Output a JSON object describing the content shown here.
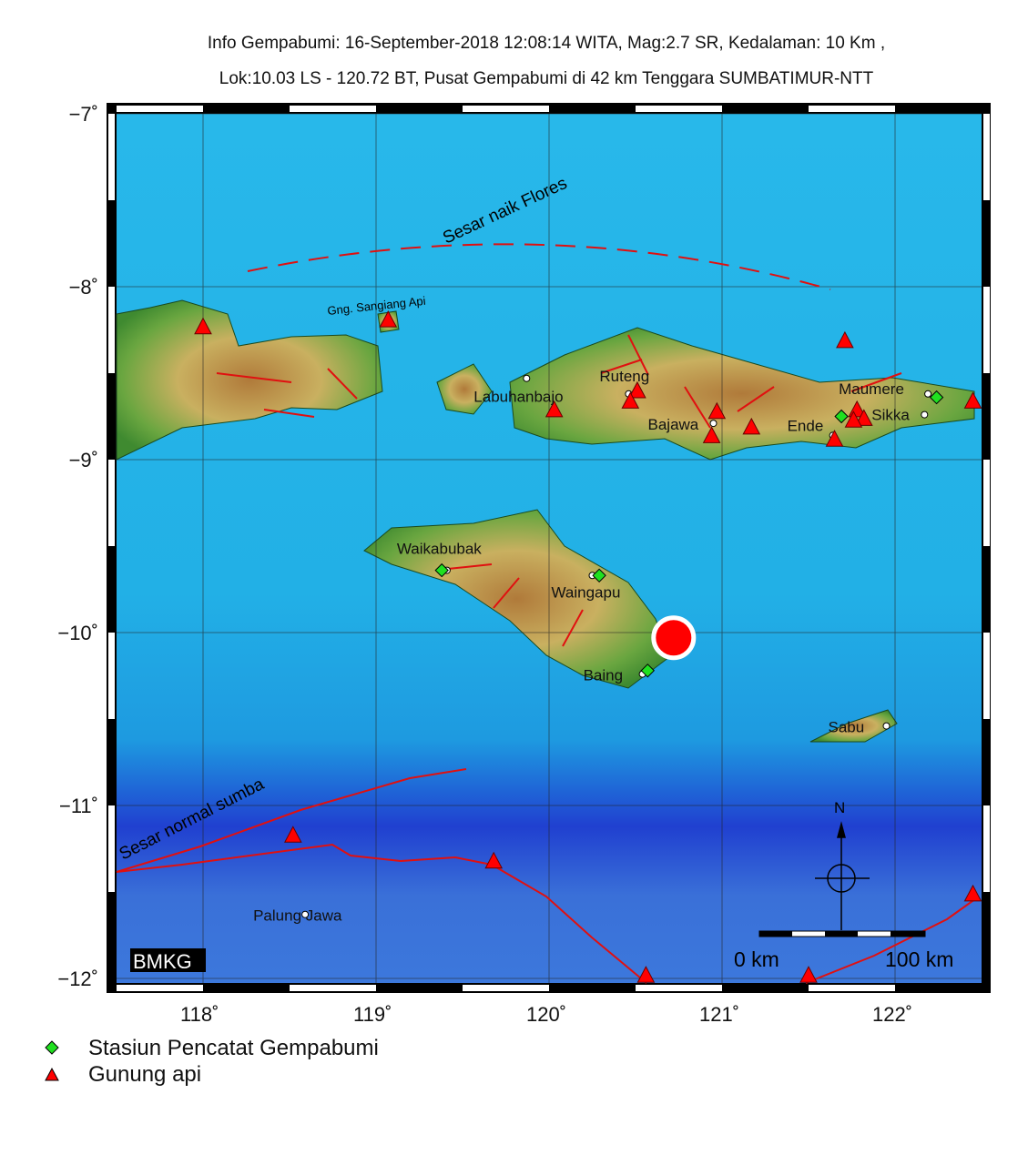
{
  "header": {
    "line1": "Info Gempabumi: 16-September-2018 12:08:14 WITA, Mag:2.7 SR, Kedalaman: 10 Km ,",
    "line2": "Lok:10.03 LS - 120.72 BT, Pusat Gempabumi di 42 km Tenggara SUMBATIMUR-NTT"
  },
  "map": {
    "lon_range": [
      117.5,
      122.5
    ],
    "lat_range": [
      -12,
      -7
    ],
    "lon_ticks": [
      "118˚",
      "119˚",
      "120˚",
      "121˚",
      "122˚"
    ],
    "lat_ticks": [
      "−7˚",
      "−8˚",
      "−9˚",
      "−10˚",
      "−11˚",
      "−12˚"
    ],
    "grid": true,
    "colors": {
      "ocean": "#22b4e8",
      "deep_ocean": "#2040d0",
      "land": "#6aa640",
      "fault": "#e01010",
      "epicenter": "#ff0000",
      "station": "#20e020",
      "volcano": "#ff0000"
    },
    "epicenter": {
      "lon": 120.72,
      "lat": -10.03
    },
    "places": [
      {
        "name": "Labuhanbajo",
        "lon": 119.87,
        "lat": -8.53
      },
      {
        "name": "Ruteng",
        "lon": 120.46,
        "lat": -8.62
      },
      {
        "name": "Bajawa",
        "lon": 120.95,
        "lat": -8.79
      },
      {
        "name": "Ende",
        "lon": 121.64,
        "lat": -8.86
      },
      {
        "name": "Maumere",
        "lon": 122.19,
        "lat": -8.62
      },
      {
        "name": "Sikka",
        "lon": 122.17,
        "lat": -8.74
      },
      {
        "name": "Waikabubak",
        "lon": 119.41,
        "lat": -9.64
      },
      {
        "name": "Waingapu",
        "lon": 120.25,
        "lat": -9.67
      },
      {
        "name": "Baing",
        "lon": 120.54,
        "lat": -10.24
      },
      {
        "name": "Sabu",
        "lon": 121.95,
        "lat": -10.54
      },
      {
        "name": "Palung Jawa",
        "lon": 118.59,
        "lat": -11.63
      }
    ],
    "stations": [
      {
        "lon": 119.38,
        "lat": -9.64
      },
      {
        "lon": 120.29,
        "lat": -9.67
      },
      {
        "lon": 120.57,
        "lat": -10.22
      },
      {
        "lon": 121.69,
        "lat": -8.75
      },
      {
        "lon": 122.24,
        "lat": -8.64
      }
    ],
    "volcanoes": [
      {
        "lon": 118.0,
        "lat": -8.23
      },
      {
        "lon": 119.07,
        "lat": -8.19
      },
      {
        "lon": 120.03,
        "lat": -8.71
      },
      {
        "lon": 120.51,
        "lat": -8.6
      },
      {
        "lon": 120.47,
        "lat": -8.66
      },
      {
        "lon": 120.97,
        "lat": -8.72
      },
      {
        "lon": 120.94,
        "lat": -8.86
      },
      {
        "lon": 121.17,
        "lat": -8.81
      },
      {
        "lon": 121.71,
        "lat": -8.31
      },
      {
        "lon": 121.78,
        "lat": -8.71
      },
      {
        "lon": 121.82,
        "lat": -8.76
      },
      {
        "lon": 121.76,
        "lat": -8.77
      },
      {
        "lon": 121.65,
        "lat": -8.88
      },
      {
        "lon": 122.45,
        "lat": -8.66
      },
      {
        "lon": 118.52,
        "lat": -11.17
      },
      {
        "lon": 119.68,
        "lat": -11.32
      },
      {
        "lon": 120.56,
        "lat": -11.98
      },
      {
        "lon": 121.5,
        "lat": -11.98
      },
      {
        "lon": 122.45,
        "lat": -11.51
      }
    ],
    "labels": {
      "volcano_name": "Gng. Sangiang Api",
      "flores_fault": "Sesar naik Flores",
      "sumba_fault": "Sesar normal sumba",
      "north": "N",
      "scale_start": "0 km",
      "scale_end": "100 km",
      "logo": "BMKG"
    }
  },
  "legend": {
    "station": "Stasiun Pencatat Gempabumi",
    "volcano": "Gunung api"
  }
}
